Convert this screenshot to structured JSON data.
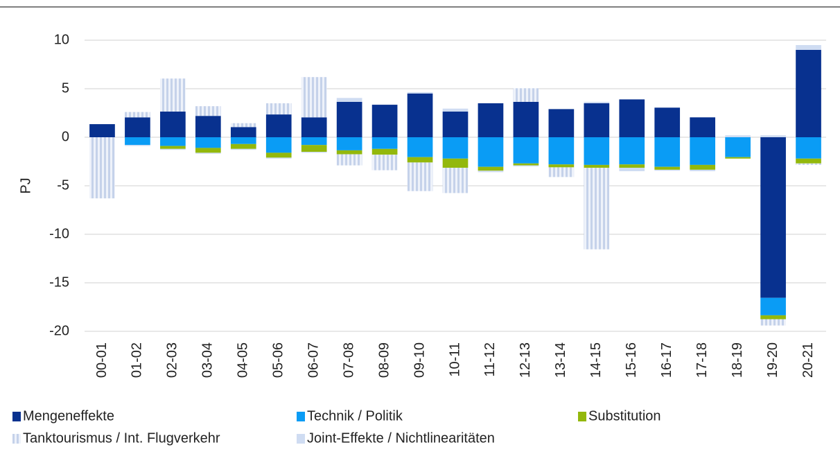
{
  "chart_data": {
    "type": "bar",
    "stacked": true,
    "y_label": "PJ",
    "categories": [
      "00-01",
      "01-02",
      "02-03",
      "03-04",
      "04-05",
      "05-06",
      "06-07",
      "07-08",
      "08-09",
      "09-10",
      "10-11",
      "11-12",
      "12-13",
      "13-14",
      "14-15",
      "15-16",
      "16-17",
      "17-18",
      "18-19",
      "19-20",
      "20-21"
    ],
    "series": [
      {
        "name": "Mengeneffekte",
        "color": "#08318f",
        "values": [
          1.35,
          2.05,
          2.65,
          2.2,
          1.05,
          2.35,
          2.05,
          3.65,
          3.35,
          4.5,
          2.65,
          3.5,
          3.65,
          2.9,
          3.5,
          3.9,
          3.05,
          2.05,
          0,
          -16.55,
          9.0
        ]
      },
      {
        "name": "Technik / Politik",
        "color": "#0a9cf5",
        "values": [
          0,
          -0.8,
          -0.9,
          -1.1,
          -0.7,
          -1.6,
          -0.8,
          -1.35,
          -1.2,
          -2.05,
          -2.2,
          -3.05,
          -2.7,
          -2.8,
          -2.85,
          -2.8,
          -3.05,
          -2.85,
          -2.05,
          -1.8,
          -2.2
        ]
      },
      {
        "name": "Substitution",
        "color": "#93b80c",
        "values": [
          0,
          0,
          -0.3,
          -0.5,
          -0.5,
          -0.5,
          -0.7,
          -0.4,
          -0.6,
          -0.55,
          -0.95,
          -0.4,
          -0.2,
          -0.3,
          -0.3,
          -0.35,
          -0.3,
          -0.5,
          -0.15,
          -0.4,
          -0.5
        ]
      },
      {
        "name": "Tanktourismus / Int. Flugverkehr",
        "color": "#c5d2ea",
        "pattern": "stripes",
        "values": [
          -6.3,
          0.55,
          3.4,
          1.0,
          0.4,
          1.15,
          4.15,
          -1.15,
          -1.6,
          -2.95,
          -2.6,
          0,
          1.4,
          -1.0,
          -8.4,
          0,
          0,
          0,
          0,
          -0.65,
          -0.15
        ]
      },
      {
        "name": "Joint-Effekte / Nichtlinearitäten",
        "color": "#cfdcf2",
        "values": [
          0,
          -0.1,
          -0.1,
          -0.1,
          -0.1,
          -0.1,
          -0.1,
          0.4,
          0,
          0.15,
          0.3,
          -0.15,
          -0.1,
          0,
          0.15,
          -0.35,
          -0.1,
          -0.15,
          0.2,
          0.2,
          0.5
        ]
      }
    ],
    "ylim": [
      -20,
      10
    ],
    "yticks": [
      -20,
      -15,
      -10,
      -5,
      0,
      5,
      10
    ],
    "grid": true
  }
}
